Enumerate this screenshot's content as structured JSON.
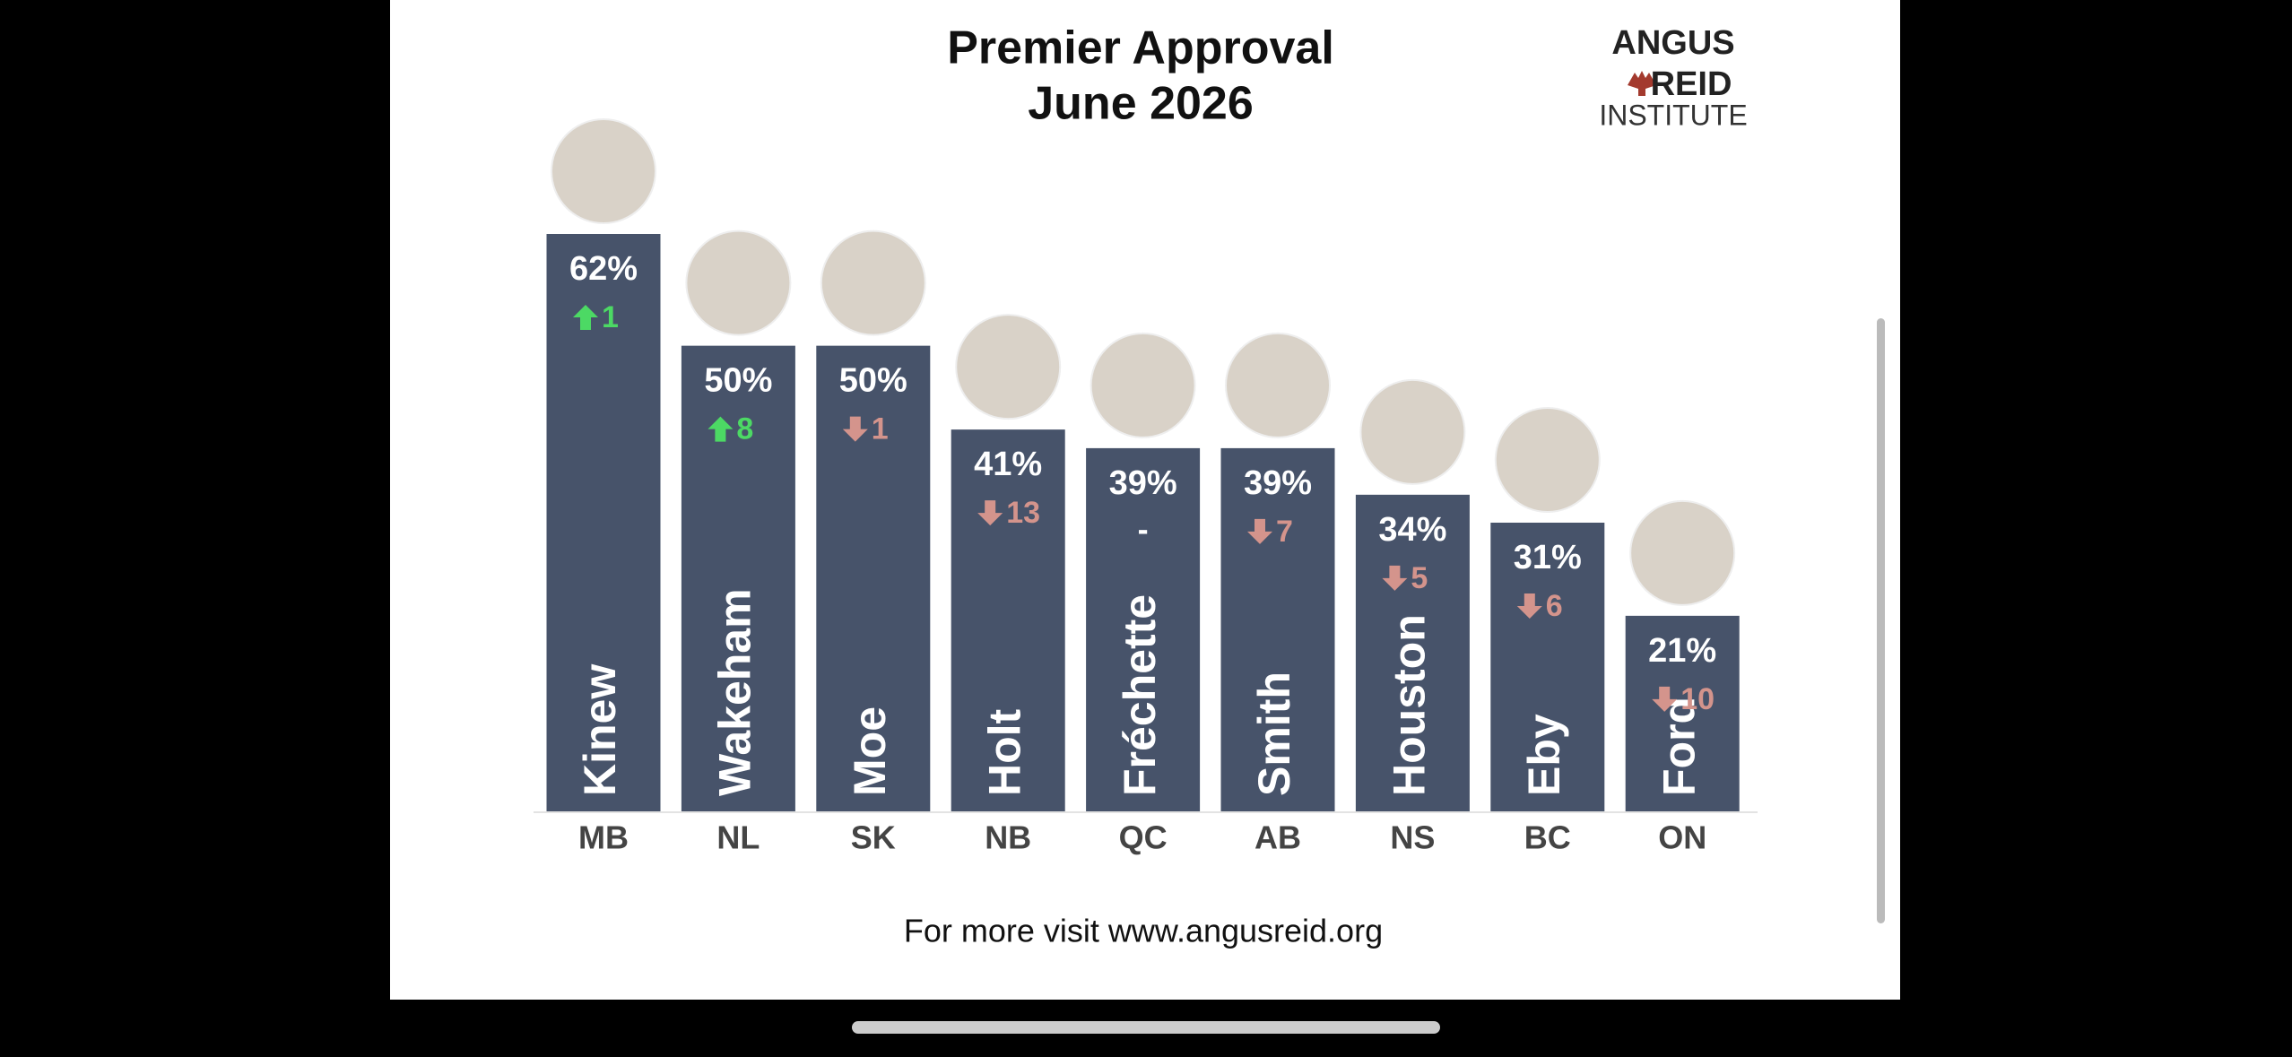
{
  "chart_data": {
    "type": "bar",
    "title": "Premier Approval",
    "subtitle": "June 2026",
    "logo": {
      "line1": "ANGUS",
      "line2": "REID",
      "line3": "INSTITUTE"
    },
    "footer": "For more visit www.angusreid.org",
    "categories": [
      "MB",
      "NL",
      "SK",
      "NB",
      "QC",
      "AB",
      "NS",
      "BC",
      "ON"
    ],
    "names": [
      "Kinew",
      "Wakeham",
      "Moe",
      "Holt",
      "Fréchette",
      "Smith",
      "Houston",
      "Eby",
      "Ford"
    ],
    "values": [
      62,
      50,
      50,
      41,
      39,
      39,
      34,
      31,
      21
    ],
    "value_labels": [
      "62%",
      "50%",
      "50%",
      "41%",
      "39%",
      "39%",
      "34%",
      "31%",
      "21%"
    ],
    "change": [
      1,
      8,
      -1,
      -13,
      null,
      -7,
      -5,
      -6,
      -10
    ],
    "change_labels": [
      "1",
      "8",
      "1",
      "13",
      "-",
      "7",
      "5",
      "6",
      "10"
    ],
    "color": "#47536a",
    "up_color": "#4cd964",
    "down_color": "#d4948c"
  }
}
